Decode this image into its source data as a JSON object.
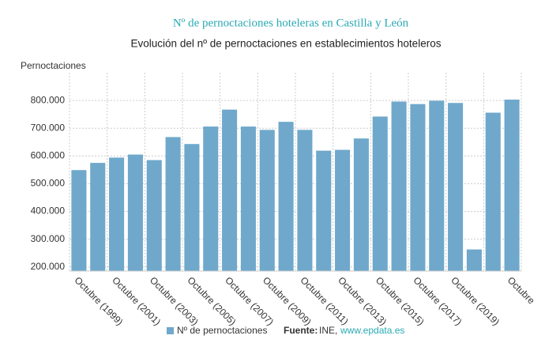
{
  "chart_data": {
    "type": "bar",
    "title": "Nº de pernoctaciones hoteleras en Castilla y León",
    "subtitle": "Evolución del nº de pernoctaciones en establecimientos hoteleros",
    "y_label": "Pernoctaciones",
    "categories": [
      "Octubre (1999)",
      null,
      "Octubre (2001)",
      null,
      "Octubre (2003)",
      null,
      "Octubre (2005)",
      null,
      "Octubre (2007)",
      null,
      "Octubre (2009)",
      null,
      "Octubre (2011)",
      null,
      "Octubre (2013)",
      null,
      "Octubre (2015)",
      null,
      "Octubre (2017)",
      null,
      "Octubre (2019)",
      null,
      null,
      "Octubre"
    ],
    "series": [
      {
        "name": "Nº de pernoctaciones",
        "color": "#6fa8cb",
        "values": [
          549000,
          575000,
          594000,
          605000,
          585000,
          668000,
          643000,
          706000,
          767000,
          706000,
          694000,
          723000,
          694000,
          619000,
          622000,
          663000,
          742000,
          796000,
          787000,
          799000,
          791000,
          263000,
          756000,
          803000
        ]
      }
    ],
    "ylim": [
      185000,
      900000
    ],
    "yticks": [
      {
        "value": 200000,
        "label": "200.000"
      },
      {
        "value": 300000,
        "label": "300.000"
      },
      {
        "value": 400000,
        "label": "400.000"
      },
      {
        "value": 500000,
        "label": "500.000"
      },
      {
        "value": 600000,
        "label": "600.000"
      },
      {
        "value": 700000,
        "label": "700.000"
      },
      {
        "value": 800000,
        "label": "800.000"
      }
    ],
    "grid": true,
    "source_label": "Fuente:",
    "source": "INE,",
    "source_url": "www.epdata.es"
  }
}
